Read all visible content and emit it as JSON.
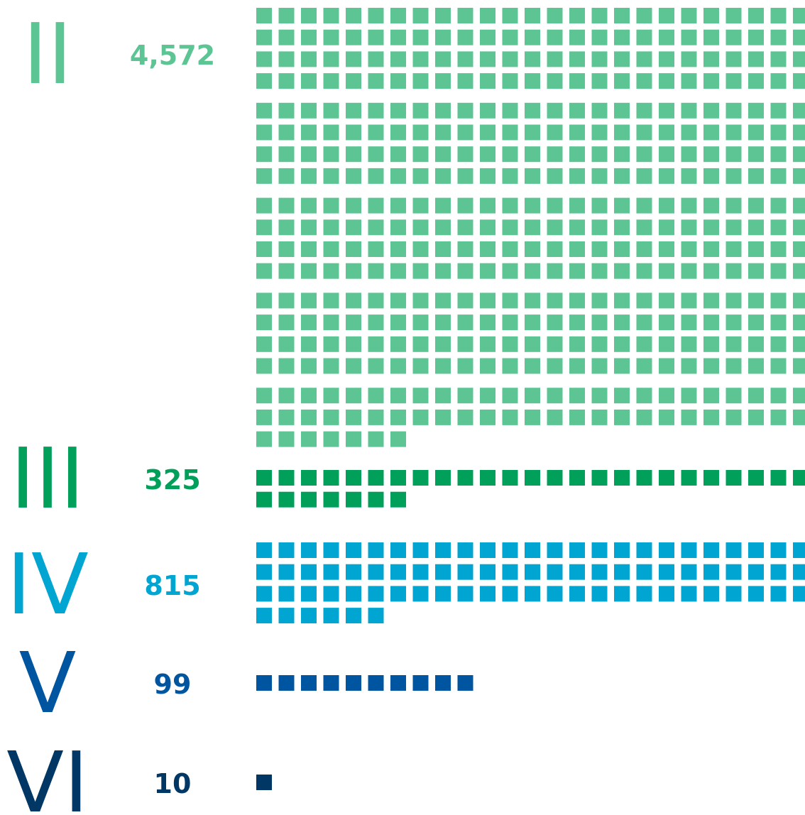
{
  "chart_data": {
    "type": "waffle",
    "categories": [
      "II",
      "III",
      "IV",
      "V",
      "VI"
    ],
    "values": [
      4572,
      325,
      815,
      99,
      10
    ],
    "value_labels": [
      "4,572",
      "325",
      "815",
      "99",
      "10"
    ],
    "colors": [
      "#5cc593",
      "#00a05a",
      "#00a5d2",
      "#0055a0",
      "#003764"
    ]
  }
}
